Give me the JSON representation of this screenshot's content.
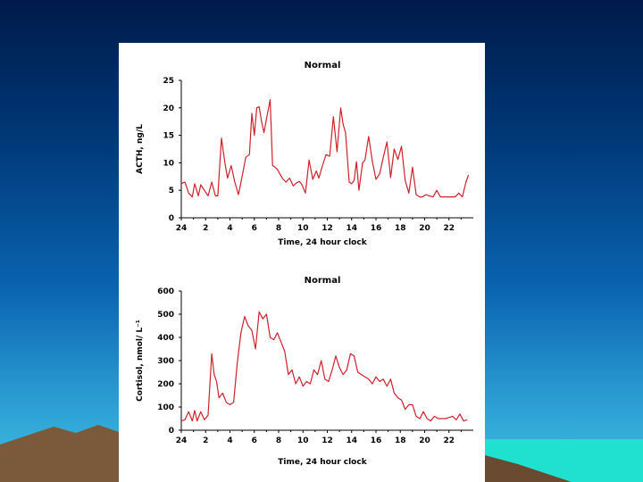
{
  "slide": {
    "background_top": "#001a4a",
    "background_bottom": "#3fc3e0",
    "mountain_color": "#7a5a3a",
    "sea_color": "#20e0d0"
  },
  "chart_data": [
    {
      "type": "line",
      "title": "Normal",
      "xlabel": "Time, 24 hour clock",
      "ylabel": "ACTH, ng/L",
      "xlim": [
        0,
        24
      ],
      "ylim": [
        0,
        25
      ],
      "x_ticks": [
        "24",
        "2",
        "4",
        "6",
        "8",
        "10",
        "12",
        "14",
        "16",
        "18",
        "20",
        "22"
      ],
      "y_ticks": [
        "0",
        "5",
        "10",
        "15",
        "20",
        "25"
      ],
      "color": "#d0202a",
      "series": [
        {
          "x": [
            0,
            0.3,
            0.6,
            0.9,
            1.1,
            1.4,
            1.6,
            1.9,
            2.2,
            2.5,
            2.8,
            3.0,
            3.3,
            3.6,
            3.8,
            4.1,
            4.4,
            4.7,
            5.0,
            5.3,
            5.6,
            5.8,
            6.0,
            6.2,
            6.4,
            6.6,
            6.8,
            7.0,
            7.3,
            7.5,
            7.7,
            7.9,
            8.1,
            8.3,
            8.6,
            8.9,
            9.2,
            9.5,
            9.7,
            9.9,
            10.2,
            10.5,
            10.8,
            11.1,
            11.3,
            11.6,
            11.9,
            12.2,
            12.5,
            12.8,
            13.1,
            13.3,
            13.5,
            13.8,
            14.0,
            14.2,
            14.4,
            14.6,
            14.9,
            15.1,
            15.4,
            15.7,
            16.0,
            16.3,
            16.6,
            16.9,
            17.2,
            17.5,
            17.8,
            18.1,
            18.4,
            18.7,
            19.0,
            19.3,
            19.6,
            19.8,
            20.1,
            20.4,
            20.7,
            21.0,
            21.3,
            21.6,
            21.9,
            22.2,
            22.5,
            22.8,
            23.1,
            23.4,
            23.6
          ],
          "y": [
            6.2,
            6.5,
            4.5,
            3.8,
            6.2,
            4.0,
            6.0,
            5.0,
            4.0,
            6.5,
            4.0,
            4.0,
            14.5,
            9.8,
            7.2,
            9.5,
            6.5,
            4.2,
            7.5,
            11.0,
            11.5,
            19.0,
            15.0,
            20.0,
            20.2,
            17.5,
            15.5,
            18.0,
            21.5,
            9.5,
            9.2,
            8.8,
            8.0,
            7.2,
            6.5,
            7.2,
            5.8,
            6.4,
            6.6,
            6.1,
            4.5,
            10.5,
            7.0,
            8.5,
            7.2,
            9.5,
            11.5,
            11.2,
            18.4,
            12.0,
            20.0,
            17.0,
            15.5,
            6.5,
            6.2,
            6.8,
            10.2,
            5.0,
            10.0,
            10.5,
            14.8,
            10.3,
            7.0,
            8.0,
            11.0,
            13.8,
            7.3,
            12.5,
            10.6,
            13.0,
            6.8,
            4.5,
            9.2,
            4.2,
            3.8,
            3.8,
            4.2,
            4.0,
            3.8,
            5.0,
            3.8,
            3.8,
            3.8,
            3.8,
            3.8,
            4.5,
            3.8,
            6.5,
            7.8
          ]
        }
      ]
    },
    {
      "type": "line",
      "title": "Normal",
      "xlabel": "Time, 24 hour clock",
      "ylabel": "Cortisol, nmol/ L⁻¹",
      "xlim": [
        0,
        24
      ],
      "ylim": [
        0,
        600
      ],
      "x_ticks": [
        "24",
        "2",
        "4",
        "6",
        "8",
        "10",
        "12",
        "14",
        "16",
        "18",
        "20",
        "22"
      ],
      "y_ticks": [
        "0",
        "100",
        "200",
        "300",
        "400",
        "500",
        "600"
      ],
      "color": "#d0202a",
      "series": [
        {
          "x": [
            0,
            0.3,
            0.6,
            0.9,
            1.1,
            1.3,
            1.6,
            1.9,
            2.2,
            2.5,
            2.7,
            2.9,
            3.1,
            3.4,
            3.7,
            4.0,
            4.3,
            4.6,
            4.9,
            5.2,
            5.5,
            5.8,
            6.1,
            6.4,
            6.7,
            7.0,
            7.3,
            7.6,
            7.9,
            8.2,
            8.5,
            8.8,
            9.1,
            9.4,
            9.7,
            10.0,
            10.3,
            10.6,
            10.9,
            11.2,
            11.5,
            11.8,
            12.1,
            12.4,
            12.7,
            13.0,
            13.3,
            13.6,
            13.9,
            14.2,
            14.5,
            14.8,
            15.1,
            15.4,
            15.7,
            16.0,
            16.3,
            16.6,
            16.9,
            17.2,
            17.5,
            17.8,
            18.1,
            18.4,
            18.7,
            19.0,
            19.3,
            19.6,
            19.9,
            20.2,
            20.5,
            20.8,
            21.1,
            21.4,
            21.7,
            22.0,
            22.3,
            22.6,
            22.9,
            23.2,
            23.5
          ],
          "y": [
            40,
            45,
            80,
            40,
            85,
            40,
            80,
            45,
            65,
            330,
            240,
            210,
            140,
            160,
            120,
            110,
            120,
            290,
            420,
            490,
            450,
            430,
            350,
            510,
            480,
            500,
            400,
            390,
            420,
            380,
            340,
            240,
            260,
            200,
            230,
            190,
            210,
            200,
            260,
            240,
            300,
            220,
            210,
            260,
            320,
            270,
            240,
            260,
            330,
            320,
            250,
            240,
            230,
            220,
            200,
            230,
            210,
            220,
            190,
            220,
            160,
            140,
            130,
            90,
            110,
            110,
            60,
            50,
            80,
            50,
            40,
            60,
            50,
            50,
            50,
            55,
            60,
            45,
            70,
            40,
            45
          ]
        }
      ]
    }
  ]
}
